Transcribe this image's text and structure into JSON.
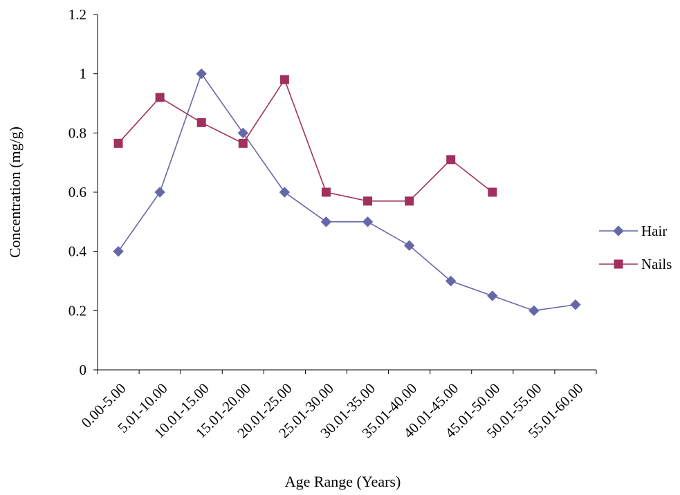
{
  "chart_data": {
    "type": "line",
    "title": "",
    "xlabel": "Age Range (Years)",
    "ylabel": "Concentration (mg/g)",
    "ylim": [
      0,
      1.2
    ],
    "yticks": [
      "0",
      "0.2",
      "0.4",
      "0.6",
      "0.8",
      "1",
      "1.2"
    ],
    "categories": [
      "0.00-5.00",
      "5.01-10.00",
      "10.01-15.00",
      "15.01-20.00",
      "20.01-25.00",
      "25.01-30.00",
      "30.01-35.00",
      "35.01-40.00",
      "40.01-45.00",
      "45.01-50.00",
      "50.01-55.00",
      "55.01-60.00"
    ],
    "grid": false,
    "legend_position": "right",
    "series": [
      {
        "name": "Hair",
        "color": "#6667A8",
        "marker": "diamond",
        "values": [
          0.4,
          0.6,
          1.0,
          0.8,
          0.6,
          0.5,
          0.5,
          0.42,
          0.3,
          0.25,
          0.2,
          0.22
        ]
      },
      {
        "name": "Nails",
        "color": "#A0305E",
        "marker": "square",
        "values": [
          0.765,
          0.92,
          0.835,
          0.765,
          0.98,
          0.6,
          0.57,
          0.57,
          0.71,
          0.6,
          null,
          null
        ]
      }
    ]
  }
}
